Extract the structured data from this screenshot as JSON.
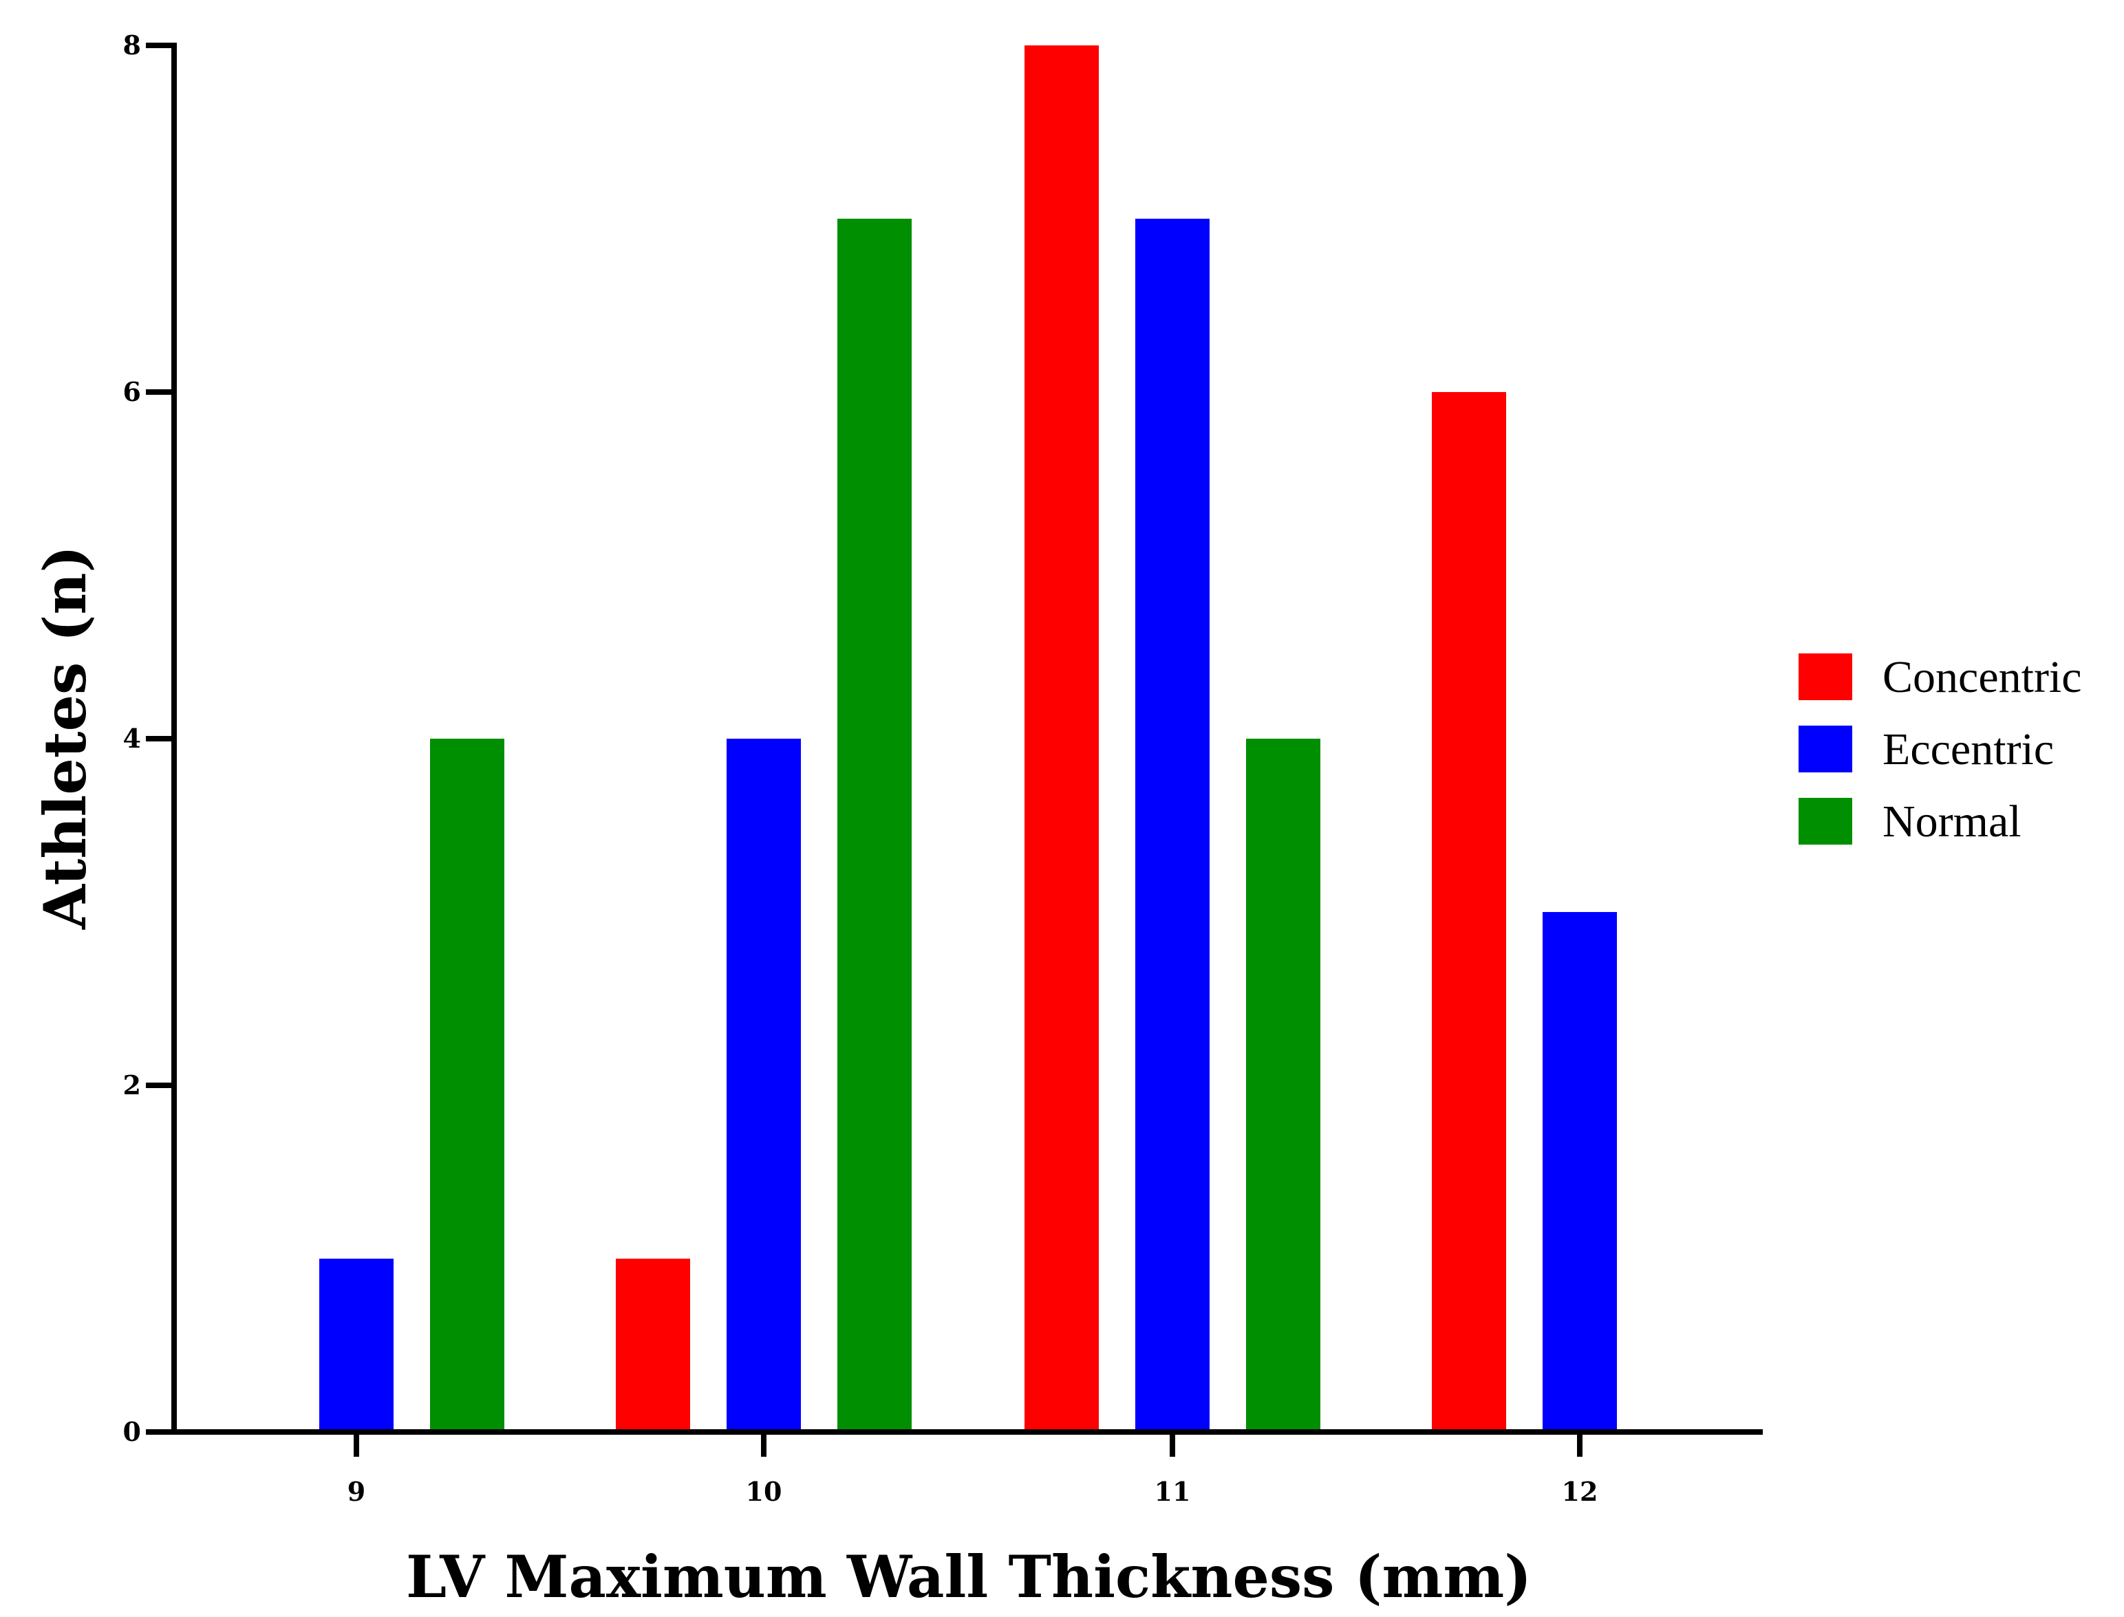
{
  "chart_data": {
    "type": "bar",
    "title": "",
    "xlabel": "LV Maximum Wall Thickness (mm)",
    "ylabel": "Athletes (n)",
    "categories": [
      "9",
      "10",
      "11",
      "12"
    ],
    "series": [
      {
        "name": "Concentric",
        "color": "#ff0000",
        "values": [
          0,
          1,
          8,
          6
        ]
      },
      {
        "name": "Eccentric",
        "color": "#0000ff",
        "values": [
          1,
          4,
          7,
          3
        ]
      },
      {
        "name": "Normal",
        "color": "#008f00",
        "values": [
          4,
          7,
          4,
          0
        ]
      }
    ],
    "ylim": [
      0,
      8
    ],
    "yticks": [
      0,
      2,
      4,
      6,
      8
    ],
    "grid": false,
    "legend": "right"
  }
}
